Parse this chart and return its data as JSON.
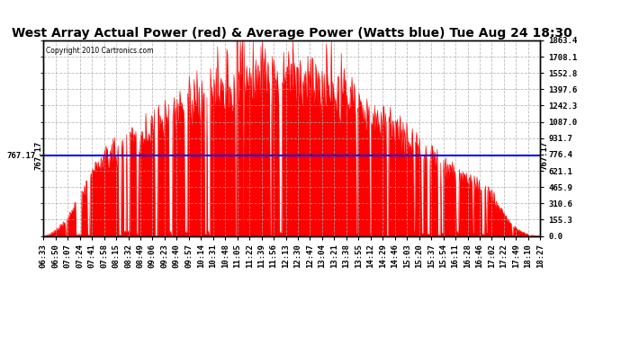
{
  "title": "West Array Actual Power (red) & Average Power (Watts blue) Tue Aug 24 18:30",
  "copyright": "Copyright 2010 Cartronics.com",
  "average_power": 767.17,
  "y_max": 1863.4,
  "y_min": 0.0,
  "y_ticks": [
    0.0,
    155.3,
    310.6,
    465.9,
    621.1,
    776.4,
    931.7,
    1087.0,
    1242.3,
    1397.6,
    1552.8,
    1708.1,
    1863.4
  ],
  "x_tick_labels": [
    "06:33",
    "06:50",
    "07:07",
    "07:24",
    "07:41",
    "07:58",
    "08:15",
    "08:32",
    "08:49",
    "09:06",
    "09:23",
    "09:40",
    "09:57",
    "10:14",
    "10:31",
    "10:48",
    "11:05",
    "11:22",
    "11:39",
    "11:56",
    "12:13",
    "12:30",
    "12:47",
    "13:04",
    "13:21",
    "13:38",
    "13:55",
    "14:12",
    "14:29",
    "14:46",
    "15:03",
    "15:20",
    "15:37",
    "15:54",
    "16:11",
    "16:28",
    "16:46",
    "17:02",
    "17:22",
    "17:49",
    "18:10",
    "18:27"
  ],
  "background_color": "#ffffff",
  "plot_bg_color": "#ffffff",
  "grid_color": "#aaaaaa",
  "bar_color": "#ff0000",
  "line_color": "#0000ff",
  "title_fontsize": 10,
  "tick_fontsize": 6.5
}
